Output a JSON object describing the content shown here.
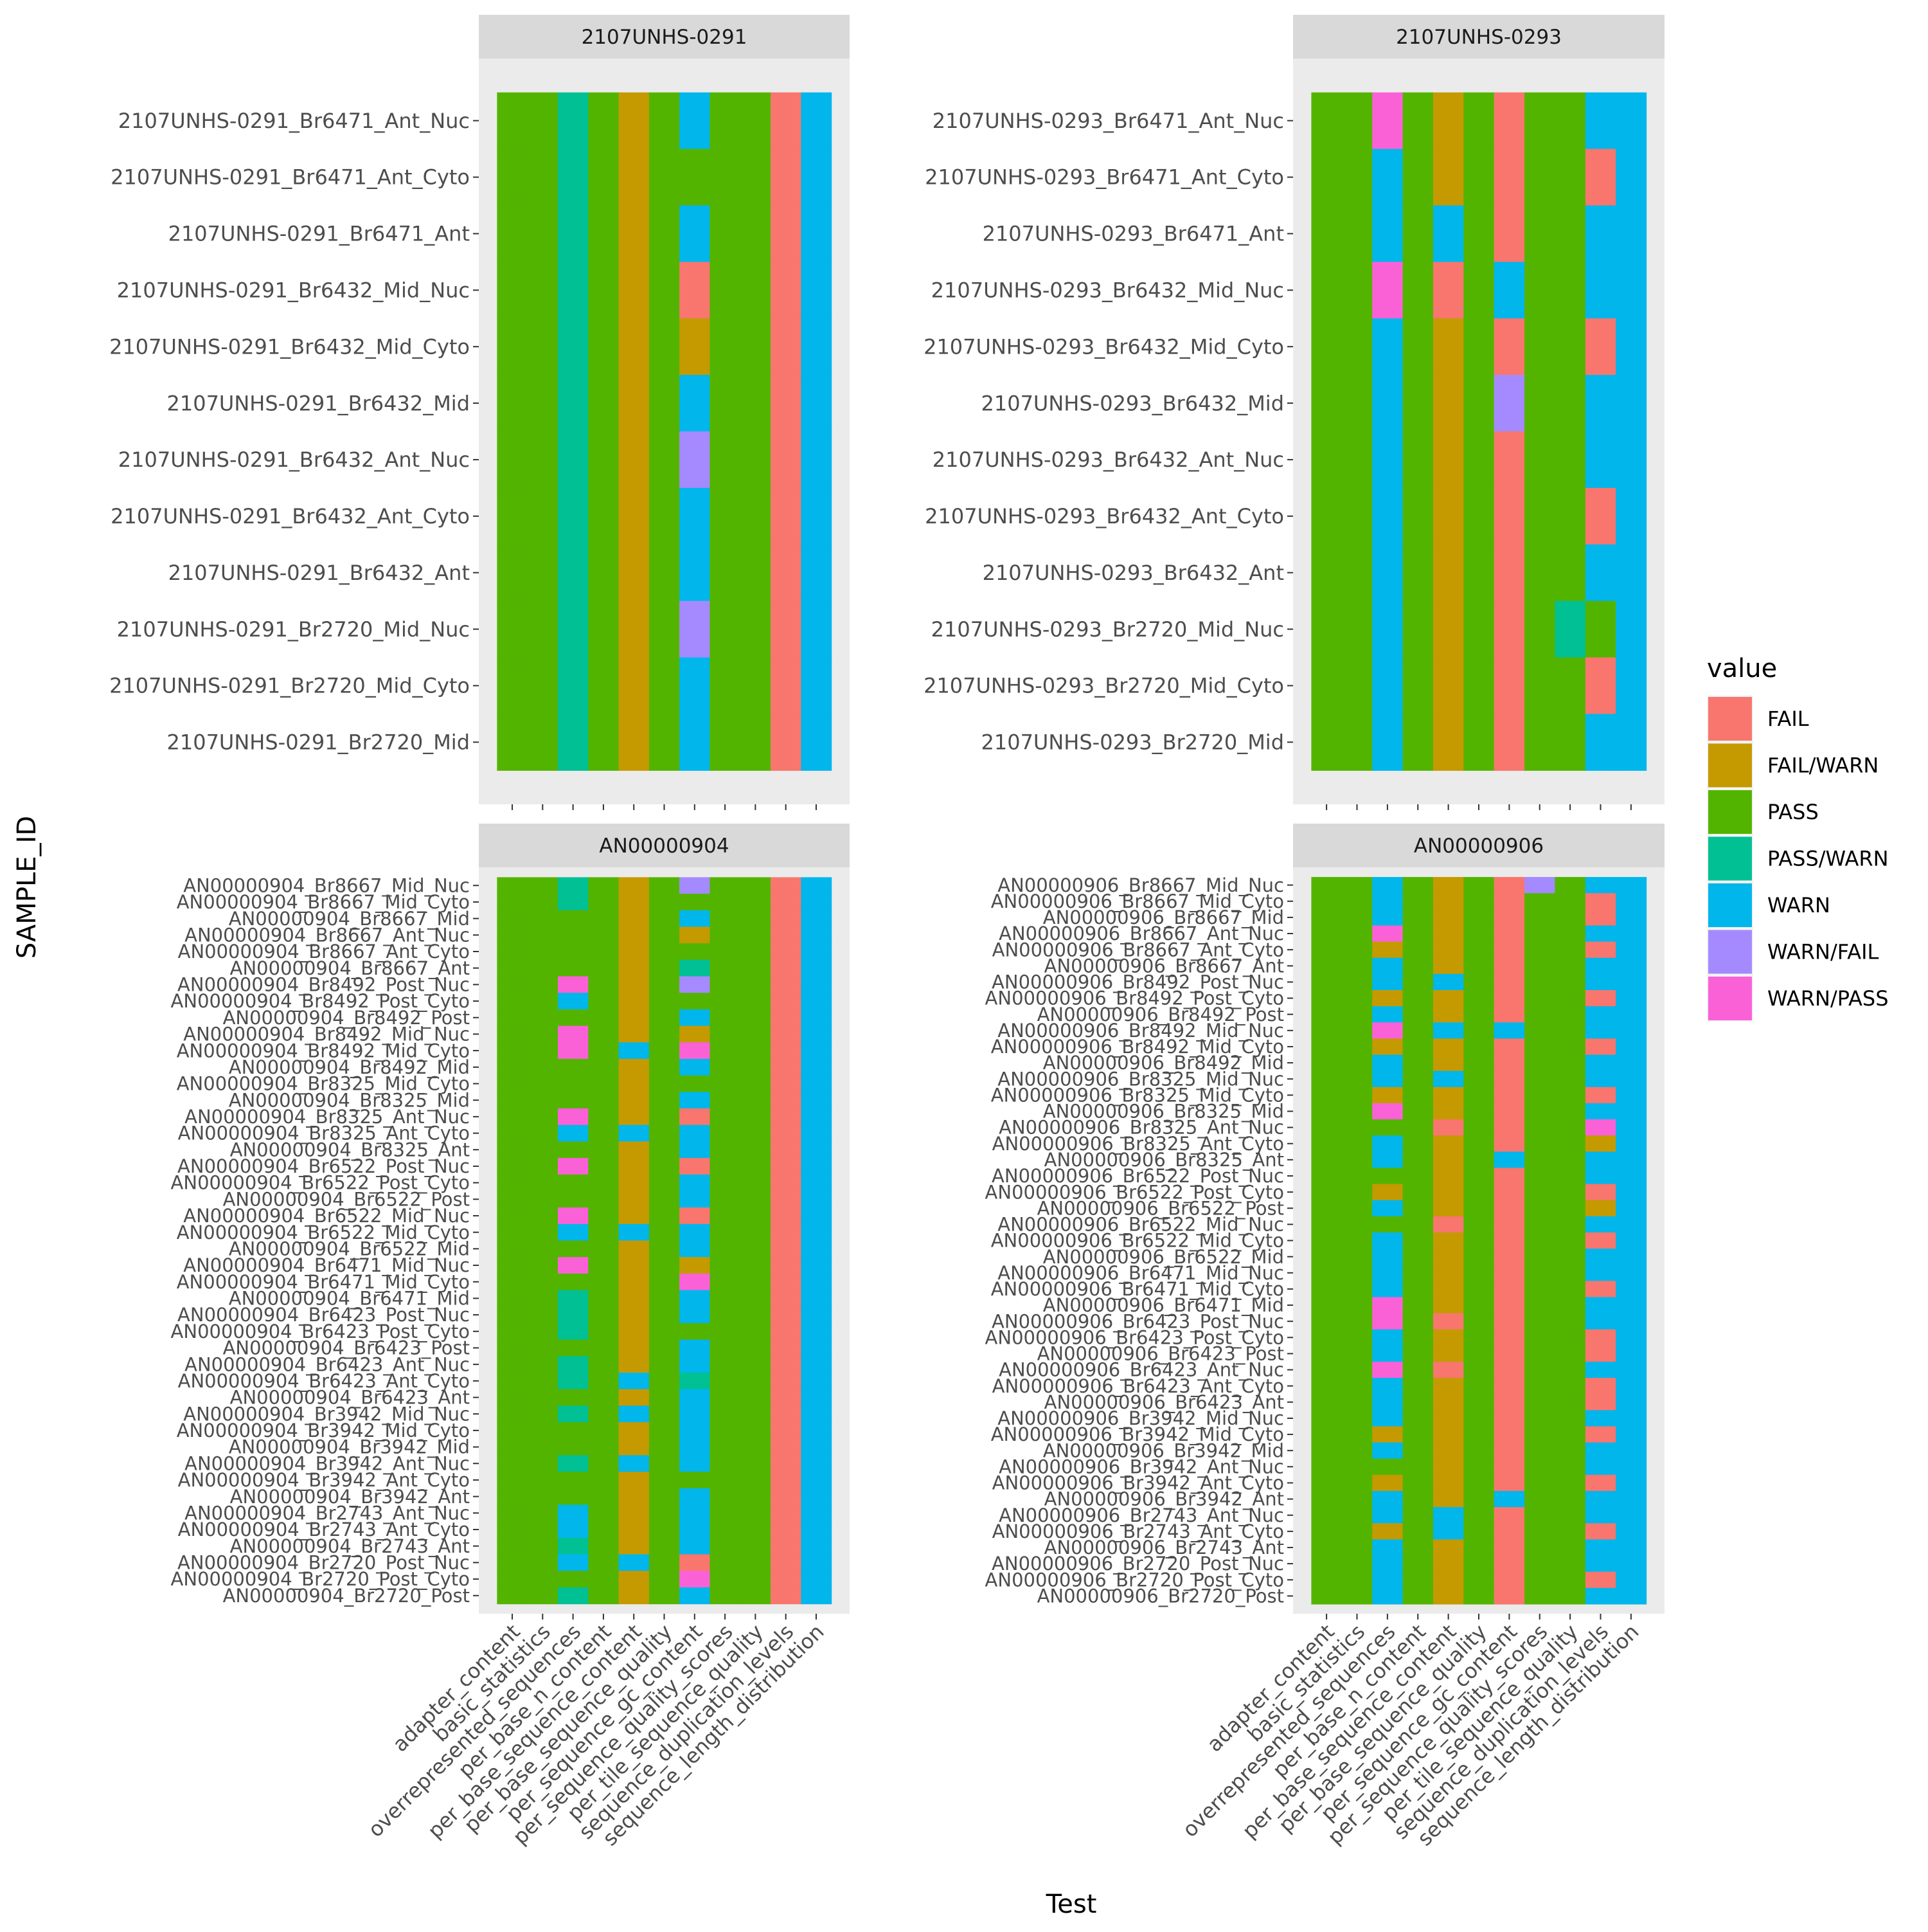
{
  "chart_data": {
    "type": "heatmap",
    "xlabel": "Test",
    "ylabel": "SAMPLE_ID",
    "legend": {
      "title": "value",
      "position": "right",
      "items": [
        {
          "label": "FAIL",
          "color": "#F8766D"
        },
        {
          "label": "FAIL/WARN",
          "color": "#C49A00"
        },
        {
          "label": "PASS",
          "color": "#53B400"
        },
        {
          "label": "PASS/WARN",
          "color": "#00C094"
        },
        {
          "label": "WARN",
          "color": "#00B6EB"
        },
        {
          "label": "WARN/FAIL",
          "color": "#A58AFF"
        },
        {
          "label": "WARN/PASS",
          "color": "#FB61D7"
        }
      ]
    },
    "tests": [
      "adapter_content",
      "basic_statistics",
      "overrepresented_sequences",
      "per_base_n_content",
      "per_base_sequence_content",
      "per_base_sequence_quality",
      "per_sequence_gc_content",
      "per_sequence_quality_scores",
      "per_tile_sequence_quality",
      "sequence_duplication_levels",
      "sequence_length_distribution"
    ],
    "code_legend": {
      "F": "FAIL",
      "X": "FAIL/WARN",
      "P": "PASS",
      "Q": "PASS/WARN",
      "W": "WARN",
      "V": "WARN/FAIL",
      "Y": "WARN/PASS"
    },
    "panels": [
      {
        "title": "2107UNHS-0291",
        "samples": [
          "2107UNHS-0291_Br6471_Ant_Nuc",
          "2107UNHS-0291_Br6471_Ant_Cyto",
          "2107UNHS-0291_Br6471_Ant",
          "2107UNHS-0291_Br6432_Mid_Nuc",
          "2107UNHS-0291_Br6432_Mid_Cyto",
          "2107UNHS-0291_Br6432_Mid",
          "2107UNHS-0291_Br6432_Ant_Nuc",
          "2107UNHS-0291_Br6432_Ant_Cyto",
          "2107UNHS-0291_Br6432_Ant",
          "2107UNHS-0291_Br2720_Mid_Nuc",
          "2107UNHS-0291_Br2720_Mid_Cyto",
          "2107UNHS-0291_Br2720_Mid"
        ],
        "values": [
          "PPQPXPWPPFW",
          "PPQPXPPPPFW",
          "PPQPXPWPPFW",
          "PPQPXPFPPFW",
          "PPQPXPXPPFW",
          "PPQPXPWPPFW",
          "PPQPXPVPPFW",
          "PPQPXPWPPFW",
          "PPQPXPWPPFW",
          "PPQPXPVPPFW",
          "PPQPXPWPPFW",
          "PPQPXPWPPFW"
        ]
      },
      {
        "title": "2107UNHS-0293",
        "samples": [
          "2107UNHS-0293_Br6471_Ant_Nuc",
          "2107UNHS-0293_Br6471_Ant_Cyto",
          "2107UNHS-0293_Br6471_Ant",
          "2107UNHS-0293_Br6432_Mid_Nuc",
          "2107UNHS-0293_Br6432_Mid_Cyto",
          "2107UNHS-0293_Br6432_Mid",
          "2107UNHS-0293_Br6432_Ant_Nuc",
          "2107UNHS-0293_Br6432_Ant_Cyto",
          "2107UNHS-0293_Br6432_Ant",
          "2107UNHS-0293_Br2720_Mid_Nuc",
          "2107UNHS-0293_Br2720_Mid_Cyto",
          "2107UNHS-0293_Br2720_Mid"
        ],
        "values": [
          "PPYPXPFPPWW",
          "PPWPXPFPPFW",
          "PPWPWPFPPWW",
          "PPYPFPWPPWW",
          "PPWPXPFPPFW",
          "PPWPXPVPPWW",
          "PPWPXPFPPWW",
          "PPWPXPFPPFW",
          "PPWPXPFPPWW",
          "PPWPXPFPQPW",
          "PPWPXPFPPFW",
          "PPWPXPFPPWW"
        ]
      },
      {
        "title": "AN00000904",
        "samples": [
          "AN00000904_Br8667_Mid_Nuc",
          "AN00000904_Br8667_Mid_Cyto",
          "AN00000904_Br8667_Mid",
          "AN00000904_Br8667_Ant_Nuc",
          "AN00000904_Br8667_Ant_Cyto",
          "AN00000904_Br8667_Ant",
          "AN00000904_Br8492_Post_Nuc",
          "AN00000904_Br8492_Post_Cyto",
          "AN00000904_Br8492_Post",
          "AN00000904_Br8492_Mid_Nuc",
          "AN00000904_Br8492_Mid_Cyto",
          "AN00000904_Br8492_Mid",
          "AN00000904_Br8325_Mid_Cyto",
          "AN00000904_Br8325_Mid",
          "AN00000904_Br8325_Ant_Nuc",
          "AN00000904_Br8325_Ant_Cyto",
          "AN00000904_Br8325_Ant",
          "AN00000904_Br6522_Post_Nuc",
          "AN00000904_Br6522_Post_Cyto",
          "AN00000904_Br6522_Post",
          "AN00000904_Br6522_Mid_Nuc",
          "AN00000904_Br6522_Mid_Cyto",
          "AN00000904_Br6522_Mid",
          "AN00000904_Br6471_Mid_Nuc",
          "AN00000904_Br6471_Mid_Cyto",
          "AN00000904_Br6471_Mid",
          "AN00000904_Br6423_Post_Nuc",
          "AN00000904_Br6423_Post_Cyto",
          "AN00000904_Br6423_Post",
          "AN00000904_Br6423_Ant_Nuc",
          "AN00000904_Br6423_Ant_Cyto",
          "AN00000904_Br6423_Ant",
          "AN00000904_Br3942_Mid_Nuc",
          "AN00000904_Br3942_Mid_Cyto",
          "AN00000904_Br3942_Mid",
          "AN00000904_Br3942_Ant_Nuc",
          "AN00000904_Br3942_Ant_Cyto",
          "AN00000904_Br3942_Ant",
          "AN00000904_Br2743_Ant_Nuc",
          "AN00000904_Br2743_Ant_Cyto",
          "AN00000904_Br2743_Ant",
          "AN00000904_Br2720_Post_Nuc",
          "AN00000904_Br2720_Post_Cyto",
          "AN00000904_Br2720_Post"
        ],
        "values": [
          "PPQPXPVPPFW",
          "PPQPXPPPPFW",
          "PPPPXPWPPFW",
          "PPPPXPXPPFW",
          "PPPPXPPPPFW",
          "PPPPXPQPPFW",
          "PPYPXPVPPFW",
          "PPWPXPPPPFW",
          "PPPPXPWPPFW",
          "PPYPXPXPPFW",
          "PPYPWPYPPFW",
          "PPPPXPWPPFW",
          "PPPPXPPPPFW",
          "PPPPXPWPPFW",
          "PPYPXPFPPFW",
          "PPWPWPWPPFW",
          "PPPPXPWPPFW",
          "PPYPXPFPPFW",
          "PPPPXPWPPFW",
          "PPPPXPWPPFW",
          "PPYPXPFPPFW",
          "PPWPWPWPPFW",
          "PPPPXPWPPFW",
          "PPYPXPXPPFW",
          "PPPPXPYPPFW",
          "PPQPXPWPPFW",
          "PPQPXPWPPFW",
          "PPQPXPPPPFW",
          "PPPPXPWPPFW",
          "PPQPXPWPPFW",
          "PPQPWPQPPFW",
          "PPPPXPWPPFW",
          "PPQPWPWPPFW",
          "PPPPXPWPPFW",
          "PPPPXPWPPFW",
          "PPQPWPWPPFW",
          "PPPPXPPPPFW",
          "PPPPXPWPPFW",
          "PPWPXPWPPFW",
          "PPWPXPWPPFW",
          "PPQPXPWPPFW",
          "PPWPWPFPPFW",
          "PPPPXPYPPFW",
          "PPQPXPWPPFW"
        ]
      },
      {
        "title": "AN00000906",
        "samples": [
          "AN00000906_Br8667_Mid_Nuc",
          "AN00000906_Br8667_Mid_Cyto",
          "AN00000906_Br8667_Mid",
          "AN00000906_Br8667_Ant_Nuc",
          "AN00000906_Br8667_Ant_Cyto",
          "AN00000906_Br8667_Ant",
          "AN00000906_Br8492_Post_Nuc",
          "AN00000906_Br8492_Post_Cyto",
          "AN00000906_Br8492_Post",
          "AN00000906_Br8492_Mid_Nuc",
          "AN00000906_Br8492_Mid_Cyto",
          "AN00000906_Br8492_Mid",
          "AN00000906_Br8325_Mid_Nuc",
          "AN00000906_Br8325_Mid_Cyto",
          "AN00000906_Br8325_Mid",
          "AN00000906_Br8325_Ant_Nuc",
          "AN00000906_Br8325_Ant_Cyto",
          "AN00000906_Br8325_Ant",
          "AN00000906_Br6522_Post_Nuc",
          "AN00000906_Br6522_Post_Cyto",
          "AN00000906_Br6522_Post",
          "AN00000906_Br6522_Mid_Nuc",
          "AN00000906_Br6522_Mid_Cyto",
          "AN00000906_Br6522_Mid",
          "AN00000906_Br6471_Mid_Nuc",
          "AN00000906_Br6471_Mid_Cyto",
          "AN00000906_Br6471_Mid",
          "AN00000906_Br6423_Post_Nuc",
          "AN00000906_Br6423_Post_Cyto",
          "AN00000906_Br6423_Post",
          "AN00000906_Br6423_Ant_Nuc",
          "AN00000906_Br6423_Ant_Cyto",
          "AN00000906_Br6423_Ant",
          "AN00000906_Br3942_Mid_Nuc",
          "AN00000906_Br3942_Mid_Cyto",
          "AN00000906_Br3942_Mid",
          "AN00000906_Br3942_Ant_Nuc",
          "AN00000906_Br3942_Ant_Cyto",
          "AN00000906_Br3942_Ant",
          "AN00000906_Br2743_Ant_Nuc",
          "AN00000906_Br2743_Ant_Cyto",
          "AN00000906_Br2743_Ant",
          "AN00000906_Br2720_Post_Nuc",
          "AN00000906_Br2720_Post_Cyto",
          "AN00000906_Br2720_Post"
        ],
        "values": [
          "PPWPXPFVPWW",
          "PPWPXPFPPFW",
          "PPWPXPFPPFW",
          "PPYPXPFPPWW",
          "PPXPXPFPPFW",
          "PPWPXPFPPWW",
          "PPWPWPFPPWW",
          "PPXPXPFPPFW",
          "PPWPXPFPPWW",
          "PPYPWPWPPWW",
          "PPXPXPFPPFW",
          "PPWPXPFPPWW",
          "PPWPWPFPPWW",
          "PPXPXPFPPFW",
          "PPYPXPFPPWW",
          "PPPPFPFPPYW",
          "PPWPXPFPPXW",
          "PPWPXPWPPWW",
          "PPPPXPFPPWW",
          "PPXPXPFPPFW",
          "PPWPXPFPPXW",
          "PPPPFPFPPWW",
          "PPWPXPFPPFW",
          "PPWPXPFPPWW",
          "PPWPXPFPPWW",
          "PPWPXPFPPFW",
          "PPYPXPFPPWW",
          "PPYPFPFPPWW",
          "PPWPXPFPPFW",
          "PPWPXPFPPFW",
          "PPYPFPFPPWW",
          "PPWPXPFPPFW",
          "PPWPXPFPPFW",
          "PPWPXPFPPWW",
          "PPXPXPFPPFW",
          "PPWPXPFPPWW",
          "PPPPXPFPPWW",
          "PPXPXPFPPFW",
          "PPWPXPWPPWW",
          "PPWPWPFPPWW",
          "PPXPWPFPPFW",
          "PPWPXPFPPWW",
          "PPWPXPFPPWW",
          "PPWPXPFPPFW",
          "PPWPXPFPPWW"
        ]
      }
    ]
  }
}
